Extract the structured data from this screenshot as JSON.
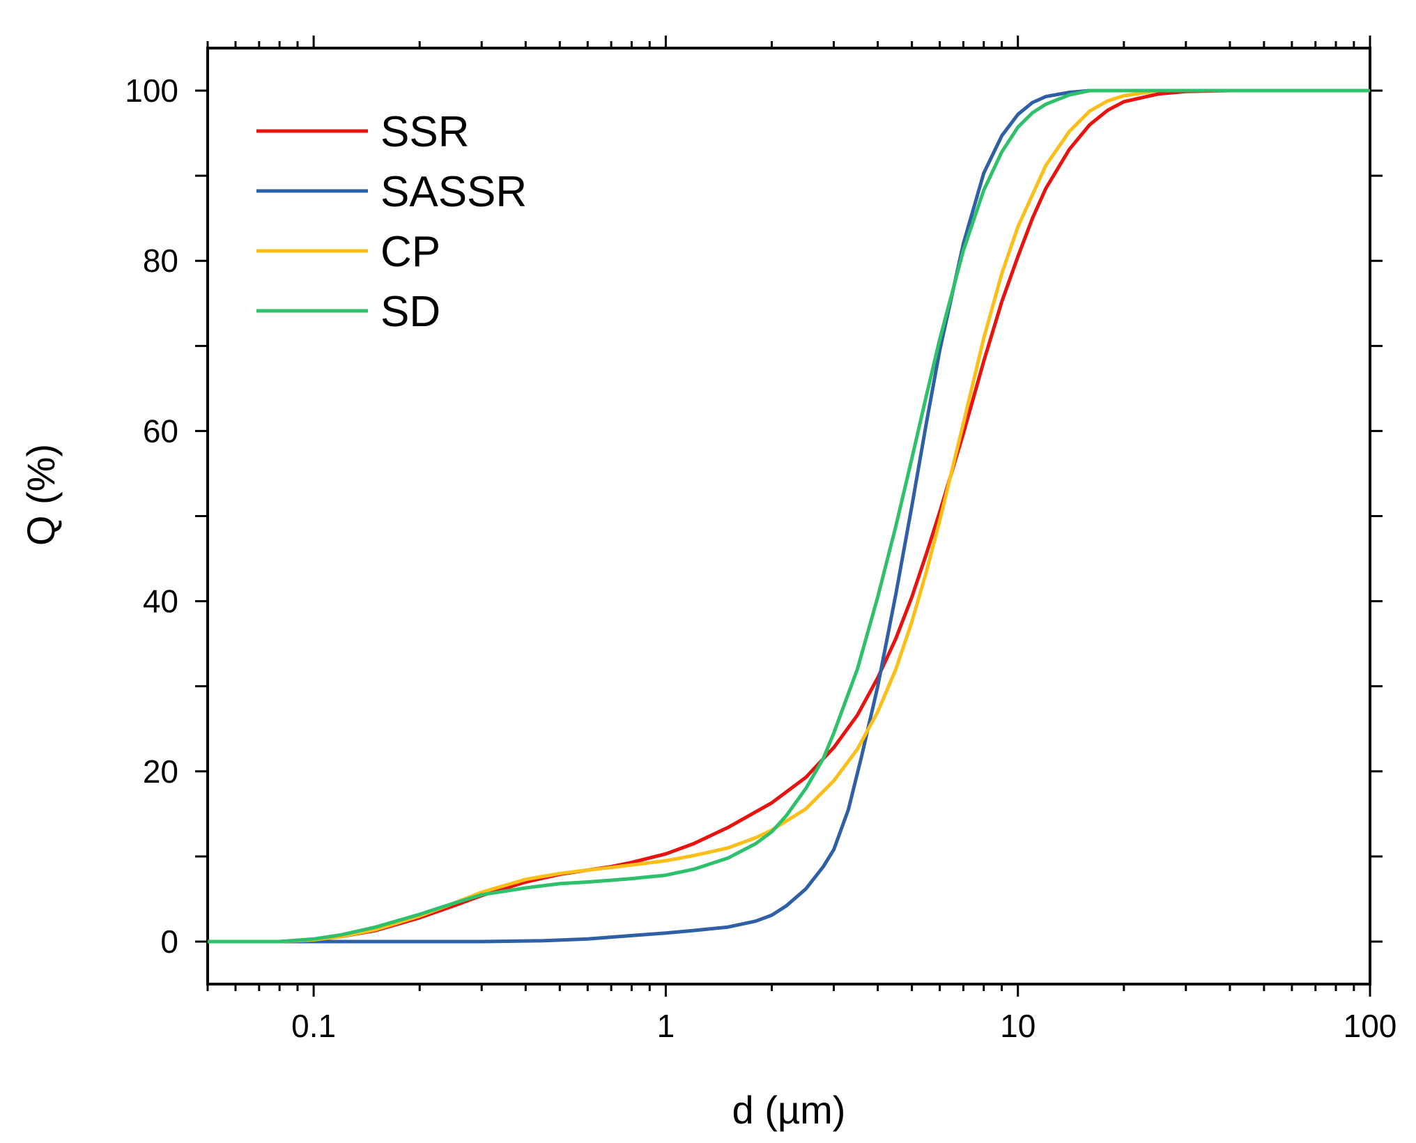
{
  "chart_data": {
    "type": "line",
    "xscale": "log",
    "xlabel": "d (µm)",
    "ylabel": "Q (%)",
    "xlim": [
      0.05,
      100
    ],
    "ylim": [
      -5,
      105
    ],
    "xticks": [
      0.1,
      1,
      10,
      100
    ],
    "xtick_labels": [
      "0.1",
      "1",
      "10",
      "100"
    ],
    "yticks": [
      0,
      20,
      40,
      60,
      80,
      100
    ],
    "ytick_labels": [
      "0",
      "20",
      "40",
      "60",
      "80",
      "100"
    ],
    "grid": false,
    "legend_position": "top-left",
    "series": [
      {
        "name": "SSR",
        "color": "#e8120e",
        "x": [
          0.05,
          0.08,
          0.1,
          0.12,
          0.15,
          0.2,
          0.25,
          0.3,
          0.4,
          0.5,
          0.6,
          0.7,
          0.8,
          1.0,
          1.2,
          1.5,
          2.0,
          2.5,
          3.0,
          3.5,
          4.0,
          4.5,
          5.0,
          5.5,
          6.0,
          7.0,
          8.0,
          9.0,
          10.0,
          11.0,
          12.0,
          14.0,
          16.0,
          18.0,
          20.0,
          25.0,
          30.0,
          40.0,
          100.0
        ],
        "values": [
          0,
          0,
          0.2,
          0.6,
          1.3,
          2.8,
          4.2,
          5.4,
          7.0,
          7.9,
          8.4,
          8.8,
          9.3,
          10.3,
          11.5,
          13.4,
          16.3,
          19.3,
          22.8,
          26.6,
          31.0,
          35.6,
          40.5,
          45.6,
          50.5,
          59.7,
          68.2,
          75.2,
          80.5,
          85.0,
          88.5,
          93.1,
          96.0,
          97.7,
          98.7,
          99.6,
          99.9,
          100,
          100
        ]
      },
      {
        "name": "SASSR",
        "color": "#2f5fa5",
        "x": [
          0.05,
          0.1,
          0.3,
          0.45,
          0.6,
          0.8,
          1.0,
          1.2,
          1.5,
          1.8,
          2.0,
          2.2,
          2.5,
          2.8,
          3.0,
          3.3,
          3.6,
          4.0,
          4.5,
          5.0,
          5.5,
          6.0,
          7.0,
          8.0,
          9.0,
          10.0,
          11.0,
          12.0,
          14.0,
          16.0,
          100.0
        ],
        "values": [
          0,
          0,
          0,
          0.1,
          0.3,
          0.7,
          1.0,
          1.3,
          1.7,
          2.4,
          3.1,
          4.2,
          6.2,
          8.8,
          10.8,
          15.5,
          21.8,
          30.0,
          40.8,
          51.2,
          61.0,
          69.5,
          82.0,
          90.3,
          94.7,
          97.2,
          98.6,
          99.3,
          99.8,
          100,
          100
        ]
      },
      {
        "name": "CP",
        "color": "#fbbf17",
        "x": [
          0.05,
          0.08,
          0.1,
          0.12,
          0.15,
          0.2,
          0.25,
          0.3,
          0.4,
          0.5,
          0.6,
          0.7,
          0.8,
          1.0,
          1.2,
          1.5,
          1.8,
          2.0,
          2.5,
          3.0,
          3.5,
          4.0,
          4.5,
          5.0,
          5.5,
          6.0,
          7.0,
          8.0,
          9.0,
          10.0,
          12.0,
          14.0,
          16.0,
          18.0,
          20.0,
          25.0,
          100.0
        ],
        "values": [
          0,
          0,
          0.2,
          0.6,
          1.4,
          3.0,
          4.5,
          5.8,
          7.3,
          8.0,
          8.4,
          8.7,
          9.0,
          9.5,
          10.1,
          11.0,
          12.2,
          13.1,
          15.6,
          18.9,
          22.6,
          27.0,
          32.0,
          37.6,
          43.5,
          49.5,
          60.9,
          70.9,
          78.5,
          84.0,
          91.2,
          95.2,
          97.6,
          98.8,
          99.4,
          100,
          100
        ]
      },
      {
        "name": "SD",
        "color": "#2ec06a",
        "x": [
          0.05,
          0.08,
          0.1,
          0.12,
          0.15,
          0.2,
          0.25,
          0.3,
          0.4,
          0.5,
          0.6,
          0.7,
          0.8,
          1.0,
          1.2,
          1.5,
          1.8,
          2.0,
          2.2,
          2.5,
          2.8,
          3.0,
          3.5,
          4.0,
          4.5,
          5.0,
          5.5,
          6.0,
          7.0,
          8.0,
          9.0,
          10.0,
          11.0,
          12.0,
          14.0,
          16.0,
          100.0
        ],
        "values": [
          0,
          0,
          0.3,
          0.8,
          1.7,
          3.2,
          4.5,
          5.5,
          6.3,
          6.8,
          7.0,
          7.2,
          7.4,
          7.8,
          8.5,
          9.8,
          11.5,
          12.9,
          14.8,
          18.0,
          21.5,
          24.5,
          32.0,
          40.5,
          48.8,
          56.8,
          64.2,
          70.8,
          81.2,
          88.3,
          92.8,
          95.7,
          97.4,
          98.4,
          99.5,
          100,
          100
        ]
      }
    ]
  }
}
